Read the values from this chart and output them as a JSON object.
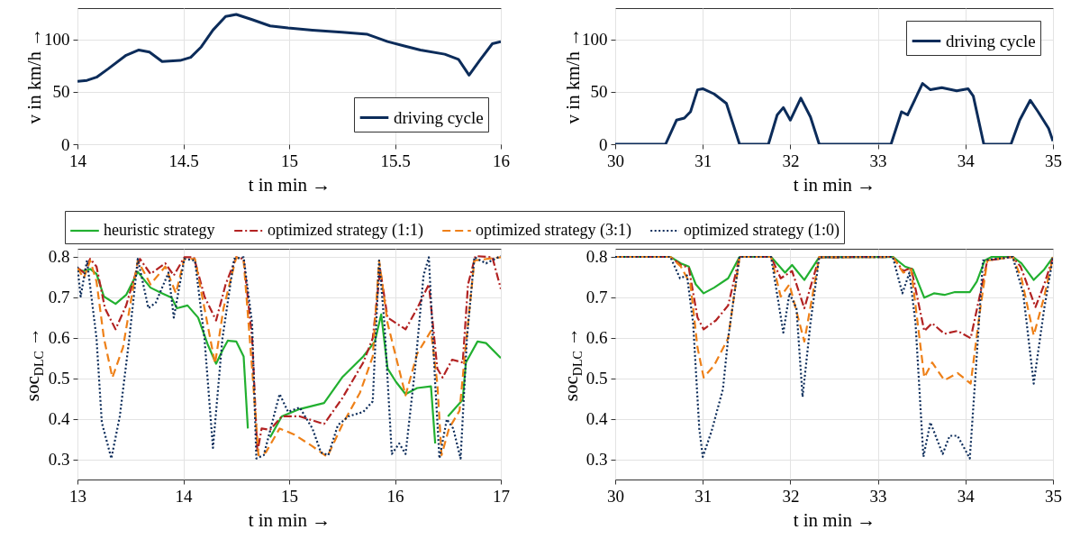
{
  "chart_data": [
    {
      "type": "line",
      "xlabel": "t in min →",
      "ylabel": "v in km/h →",
      "xlim": [
        14,
        16
      ],
      "xticks": [
        14,
        14.5,
        15,
        15.5,
        16
      ],
      "ylim": [
        0,
        130
      ],
      "yticks": [
        0,
        50,
        100
      ],
      "grid": true,
      "legend": "bottom right",
      "series": [
        {
          "name": "driving cycle",
          "color": "#0c2c5a",
          "line_style": "solid",
          "x": [
            14.0,
            14.045,
            14.09,
            14.145,
            14.23,
            14.29,
            14.34,
            14.4,
            14.485,
            14.535,
            14.585,
            14.64,
            14.7,
            14.75,
            14.825,
            14.91,
            14.995,
            15.11,
            15.25,
            15.37,
            15.465,
            15.54,
            15.62,
            15.735,
            15.8,
            15.85,
            15.9,
            15.96,
            16.0
          ],
          "values": [
            60,
            61,
            64,
            72,
            85,
            90,
            88,
            79,
            80,
            83,
            93,
            109,
            122,
            124,
            119,
            113,
            111,
            109,
            107,
            105,
            98,
            94,
            90,
            86,
            81,
            66,
            80,
            96,
            98
          ]
        }
      ]
    },
    {
      "type": "line",
      "xlabel": "t in min →",
      "ylabel": "v in km/h →",
      "xlim": [
        30,
        35
      ],
      "xticks": [
        30,
        31,
        32,
        33,
        34,
        35
      ],
      "ylim": [
        0,
        130
      ],
      "yticks": [
        0,
        50,
        100
      ],
      "grid": true,
      "legend": "top right",
      "series": [
        {
          "name": "driving cycle",
          "color": "#0c2c5a",
          "line_style": "solid",
          "x": [
            30,
            30.575,
            30.7,
            30.79,
            30.86,
            30.94,
            31.0,
            31.13,
            31.27,
            31.42,
            31.75,
            31.85,
            31.92,
            32.0,
            32.12,
            32.23,
            32.33,
            33.15,
            33.27,
            33.34,
            33.51,
            33.6,
            33.73,
            33.9,
            34.03,
            34.09,
            34.21,
            34.52,
            34.62,
            34.74,
            34.83,
            34.95,
            35.0
          ],
          "values": [
            0,
            0,
            23,
            25,
            31,
            52,
            53,
            48,
            39,
            0,
            0,
            28,
            35,
            23,
            44,
            26,
            0,
            0,
            31,
            28,
            58,
            52,
            54,
            51,
            53,
            46,
            0,
            0,
            23,
            42,
            31,
            15,
            3
          ]
        }
      ]
    },
    {
      "type": "line",
      "xlabel": "t in min →",
      "ylabel": "soc$_{DLC}$ →",
      "xlim": [
        13,
        17
      ],
      "xticks": [
        13,
        14,
        15,
        16,
        17
      ],
      "ylim": [
        0.25,
        0.82
      ],
      "yticks": [
        0.3,
        0.4,
        0.5,
        0.6,
        0.7,
        0.8
      ],
      "grid": true,
      "legend": "top",
      "series": [
        {
          "name": "heuristic strategy",
          "color": "#22b030",
          "line_style": "solid",
          "x": [
            13.0,
            13.06,
            13.12,
            13.18,
            13.25,
            13.36,
            13.46,
            13.57,
            13.69,
            13.8,
            13.89,
            13.94,
            14.04,
            14.14,
            14.23,
            14.31,
            14.37,
            14.42,
            14.5,
            14.57,
            14.61,
            14.65,
            14.7,
            14.74,
            14.82,
            14.93,
            15.1,
            15.33,
            15.5,
            15.7,
            15.81,
            15.87,
            15.93,
            16.01,
            16.1,
            16.21,
            16.34,
            16.38,
            16.4,
            16.415,
            16.43,
            16.5,
            16.64,
            16.67,
            16.78,
            16.86,
            17.0
          ],
          "values": [
            0.769,
            0.765,
            0.77,
            0.758,
            0.702,
            0.684,
            0.706,
            0.763,
            0.724,
            0.71,
            0.699,
            0.673,
            0.68,
            0.65,
            0.584,
            0.536,
            0.569,
            0.593,
            0.591,
            0.554,
            0.376,
            null,
            null,
            null,
            0.354,
            0.406,
            0.424,
            0.439,
            0.502,
            0.554,
            0.591,
            0.658,
            0.524,
            0.491,
            0.461,
            0.476,
            0.48,
            0.339,
            null,
            null,
            null,
            0.406,
            0.447,
            0.539,
            0.591,
            0.587,
            0.55
          ]
        },
        {
          "name": "optimized strategy (1:1)",
          "color": "#b22222",
          "line_style": "dashdot",
          "x": [
            13.0,
            13.06,
            13.12,
            13.18,
            13.26,
            13.36,
            13.46,
            13.59,
            13.69,
            13.83,
            13.91,
            14.01,
            14.1,
            14.2,
            14.31,
            14.4,
            14.5,
            14.57,
            14.65,
            14.7,
            14.74,
            14.82,
            14.93,
            15.1,
            15.33,
            15.5,
            15.7,
            15.79,
            15.86,
            15.93,
            16.1,
            16.21,
            16.32,
            16.4,
            16.45,
            16.54,
            16.64,
            16.69,
            16.76,
            16.92,
            17.0
          ],
          "values": [
            0.773,
            0.761,
            0.795,
            0.776,
            0.673,
            0.621,
            0.68,
            0.795,
            0.758,
            0.784,
            0.754,
            0.799,
            0.799,
            0.702,
            0.643,
            0.732,
            0.799,
            0.795,
            0.599,
            0.317,
            0.376,
            0.373,
            0.406,
            0.406,
            0.387,
            0.45,
            0.539,
            0.599,
            0.769,
            0.65,
            0.621,
            0.673,
            0.732,
            0.524,
            0.502,
            0.546,
            0.539,
            0.732,
            0.802,
            0.799,
            0.721
          ]
        },
        {
          "name": "optimized strategy (3:1)",
          "color": "#ee8018",
          "line_style": "dashed",
          "x": [
            13.0,
            13.06,
            13.12,
            13.18,
            13.25,
            13.33,
            13.43,
            13.57,
            13.69,
            13.83,
            13.93,
            14.01,
            14.11,
            14.2,
            14.3,
            14.38,
            14.5,
            14.57,
            14.65,
            14.71,
            14.78,
            14.91,
            15.05,
            15.22,
            15.36,
            15.5,
            15.67,
            15.79,
            15.85,
            15.93,
            16.1,
            16.21,
            16.34,
            16.4,
            16.44,
            16.51,
            16.61,
            16.67,
            16.75,
            17.0
          ],
          "values": [
            0.773,
            0.747,
            0.791,
            0.739,
            0.599,
            0.502,
            0.576,
            0.791,
            0.732,
            0.776,
            0.71,
            0.795,
            0.795,
            0.673,
            0.536,
            0.673,
            0.799,
            0.791,
            0.524,
            0.31,
            0.317,
            0.376,
            0.361,
            0.332,
            0.306,
            0.384,
            0.465,
            0.554,
            0.791,
            0.636,
            0.458,
            0.561,
            0.617,
            0.487,
            0.31,
            0.376,
            0.42,
            0.584,
            0.791,
            0.799
          ]
        },
        {
          "name": "optimized strategy (1:0)",
          "color": "#0c2c5a",
          "line_style": "dotted",
          "x": [
            13.0,
            13.03,
            13.09,
            13.18,
            13.23,
            13.32,
            13.4,
            13.49,
            13.57,
            13.67,
            13.74,
            13.86,
            13.91,
            14.01,
            14.11,
            14.2,
            14.28,
            14.37,
            14.48,
            14.57,
            14.65,
            14.69,
            14.76,
            14.84,
            14.91,
            14.99,
            15.1,
            15.22,
            15.3,
            15.37,
            15.46,
            15.56,
            15.7,
            15.79,
            15.85,
            15.9,
            15.97,
            16.04,
            16.1,
            16.19,
            16.27,
            16.32,
            16.38,
            16.42,
            16.49,
            16.55,
            16.62,
            16.68,
            16.75,
            16.86,
            17.0
          ],
          "values": [
            0.776,
            0.702,
            0.791,
            0.599,
            0.391,
            0.302,
            0.406,
            0.599,
            0.795,
            0.673,
            0.687,
            0.761,
            0.65,
            0.795,
            0.791,
            0.599,
            0.328,
            0.599,
            0.795,
            0.799,
            0.636,
            0.302,
            0.31,
            0.391,
            0.461,
            0.417,
            0.428,
            0.376,
            0.317,
            0.31,
            0.384,
            0.406,
            0.417,
            0.443,
            0.791,
            0.636,
            0.313,
            0.339,
            0.313,
            0.524,
            0.754,
            0.799,
            0.487,
            0.302,
            0.399,
            0.376,
            0.302,
            0.599,
            0.799,
            0.784,
            0.802
          ]
        }
      ]
    },
    {
      "type": "line",
      "xlabel": "t in min →",
      "ylabel": "soc$_{DLC}$ →",
      "xlim": [
        30,
        35
      ],
      "xticks": [
        30,
        31,
        32,
        33,
        34,
        35
      ],
      "ylim": [
        0.25,
        0.82
      ],
      "yticks": [
        0.3,
        0.4,
        0.5,
        0.6,
        0.7,
        0.8
      ],
      "grid": true,
      "series": [
        {
          "color": "#22b030",
          "line_style": "solid",
          "x": [
            30,
            30.63,
            30.75,
            30.84,
            30.92,
            31.01,
            31.13,
            31.29,
            31.42,
            31.78,
            31.94,
            32.02,
            32.16,
            32.33,
            33.17,
            33.31,
            33.4,
            33.53,
            33.64,
            33.76,
            33.88,
            34.05,
            34.13,
            34.22,
            34.3,
            34.54,
            34.64,
            34.78,
            34.9,
            35.0
          ],
          "values": [
            0.8,
            0.8,
            0.784,
            0.776,
            0.732,
            0.71,
            0.724,
            0.747,
            0.8,
            0.8,
            0.761,
            0.78,
            0.743,
            0.799,
            0.8,
            0.776,
            0.769,
            0.699,
            0.71,
            0.706,
            0.713,
            0.713,
            0.739,
            0.791,
            0.8,
            0.8,
            0.784,
            0.743,
            0.769,
            0.799
          ]
        },
        {
          "color": "#b22222",
          "line_style": "dashdot",
          "x": [
            30,
            30.63,
            30.75,
            30.84,
            30.94,
            31.01,
            31.15,
            31.29,
            31.42,
            31.78,
            31.89,
            32.02,
            32.16,
            32.33,
            33.17,
            33.29,
            33.38,
            33.53,
            33.62,
            33.76,
            33.91,
            34.06,
            34.17,
            34.25,
            34.54,
            34.63,
            34.8,
            34.9,
            35.0
          ],
          "values": [
            0.8,
            0.8,
            0.78,
            0.773,
            0.65,
            0.621,
            0.643,
            0.68,
            0.8,
            0.8,
            0.747,
            0.765,
            0.673,
            0.799,
            0.8,
            0.765,
            0.773,
            0.617,
            0.636,
            0.61,
            0.617,
            0.599,
            0.71,
            0.791,
            0.8,
            0.776,
            0.676,
            0.732,
            0.799
          ]
        },
        {
          "color": "#ee8018",
          "line_style": "dashed",
          "x": [
            30,
            30.63,
            30.75,
            30.86,
            30.94,
            31.01,
            31.13,
            31.29,
            31.42,
            31.78,
            31.89,
            31.99,
            32.16,
            32.33,
            33.17,
            33.29,
            33.38,
            33.53,
            33.62,
            33.76,
            33.91,
            34.06,
            34.17,
            34.25,
            34.54,
            34.64,
            34.78,
            34.9,
            35.0
          ],
          "values": [
            0.8,
            0.8,
            0.776,
            0.732,
            0.576,
            0.502,
            0.532,
            0.599,
            0.8,
            0.8,
            0.702,
            0.732,
            0.591,
            0.799,
            0.8,
            0.761,
            0.769,
            0.502,
            0.539,
            0.495,
            0.513,
            0.487,
            0.673,
            0.791,
            0.8,
            0.747,
            0.606,
            0.702,
            0.799
          ]
        },
        {
          "color": "#0c2c5a",
          "line_style": "dotted",
          "x": [
            30,
            30.63,
            30.74,
            30.82,
            30.89,
            30.96,
            31.0,
            31.1,
            31.23,
            31.29,
            31.42,
            31.78,
            31.92,
            31.99,
            32.07,
            32.14,
            32.23,
            32.33,
            33.17,
            33.28,
            33.36,
            33.43,
            33.52,
            33.6,
            33.74,
            33.82,
            33.91,
            34.05,
            34.12,
            34.2,
            34.54,
            34.66,
            34.78,
            34.9,
            35.0
          ],
          "values": [
            0.8,
            0.8,
            0.747,
            0.754,
            0.636,
            0.376,
            0.306,
            0.369,
            0.473,
            0.599,
            0.8,
            0.8,
            0.613,
            0.71,
            0.673,
            0.454,
            0.636,
            0.799,
            0.8,
            0.71,
            0.761,
            0.636,
            0.306,
            0.391,
            0.313,
            0.358,
            0.358,
            0.302,
            0.524,
            0.791,
            0.8,
            0.71,
            0.487,
            0.673,
            0.799
          ]
        }
      ]
    }
  ]
}
